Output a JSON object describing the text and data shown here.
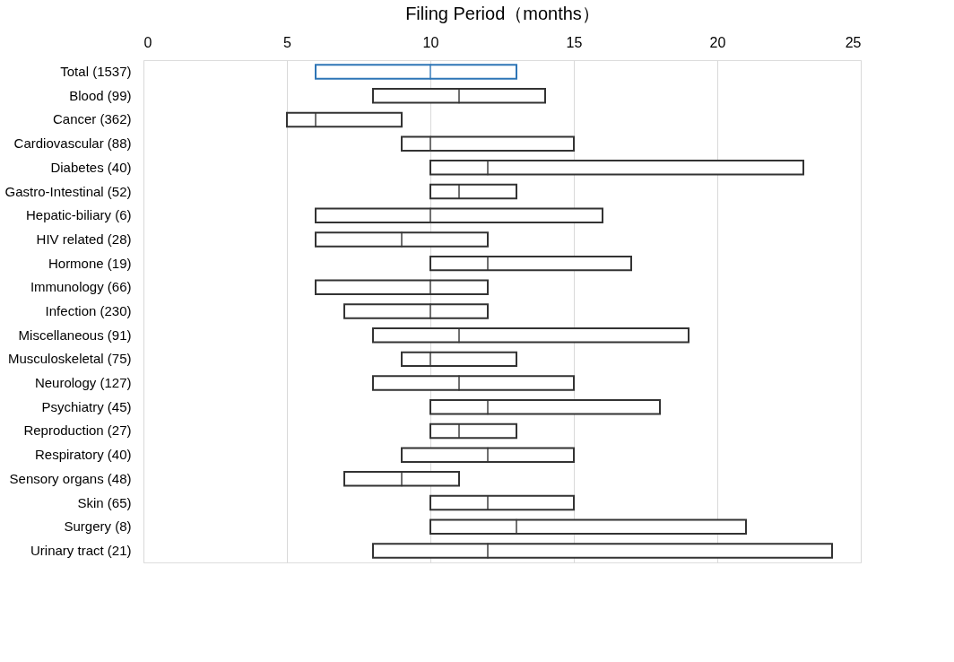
{
  "chart_data": {
    "type": "box",
    "orientation": "horizontal",
    "xlabel": "Filing Period（months）",
    "categories": [
      "Total (1537)",
      "Blood (99)",
      "Cancer (362)",
      "Cardiovascular (88)",
      "Diabetes (40)",
      "Gastro-Intestinal (52)",
      "Hepatic-biliary (6)",
      "HIV related (28)",
      "Hormone (19)",
      "Immunology (66)",
      "Infection (230)",
      "Miscellaneous (91)",
      "Musculoskeletal (75)",
      "Neurology (127)",
      "Psychiatry (45)",
      "Reproduction (27)",
      "Respiratory (40)",
      "Sensory organs (48)",
      "Skin (65)",
      "Surgery (8)",
      "Urinary tract (21)"
    ],
    "boxes": [
      {
        "low": 6,
        "q1": 6,
        "median": 10,
        "q3": 13,
        "high": 13
      },
      {
        "low": 8,
        "q1": 8,
        "median": 11,
        "q3": 14,
        "high": 14
      },
      {
        "low": 5,
        "q1": 5,
        "median": 6,
        "q3": 9,
        "high": 9
      },
      {
        "low": 9,
        "q1": 9,
        "median": 10,
        "q3": 15,
        "high": 15
      },
      {
        "low": 10,
        "q1": 10,
        "median": 12,
        "q3": 23,
        "high": 23
      },
      {
        "low": 10,
        "q1": 10,
        "median": 11,
        "q3": 13,
        "high": 13
      },
      {
        "low": 6,
        "q1": 6,
        "median": 10,
        "q3": 16,
        "high": 16
      },
      {
        "low": 6,
        "q1": 6,
        "median": 9,
        "q3": 12,
        "high": 12
      },
      {
        "low": 10,
        "q1": 10,
        "median": 12,
        "q3": 17,
        "high": 17
      },
      {
        "low": 6,
        "q1": 6,
        "median": 10,
        "q3": 12,
        "high": 12
      },
      {
        "low": 7,
        "q1": 7,
        "median": 10,
        "q3": 12,
        "high": 12
      },
      {
        "low": 8,
        "q1": 8,
        "median": 11,
        "q3": 19,
        "high": 19
      },
      {
        "low": 9,
        "q1": 9,
        "median": 10,
        "q3": 13,
        "high": 13
      },
      {
        "low": 8,
        "q1": 8,
        "median": 11,
        "q3": 15,
        "high": 15
      },
      {
        "low": 10,
        "q1": 10,
        "median": 12,
        "q3": 18,
        "high": 18
      },
      {
        "low": 10,
        "q1": 10,
        "median": 11,
        "q3": 13,
        "high": 13
      },
      {
        "low": 9,
        "q1": 9,
        "median": 12,
        "q3": 15,
        "high": 15
      },
      {
        "low": 7,
        "q1": 7,
        "median": 9,
        "q3": 11,
        "high": 11
      },
      {
        "low": 10,
        "q1": 10,
        "median": 12,
        "q3": 15,
        "high": 15
      },
      {
        "low": 10,
        "q1": 10,
        "median": 13,
        "q3": 21,
        "high": 21
      },
      {
        "low": 8,
        "q1": 8,
        "median": 12,
        "q3": 24,
        "high": 24
      }
    ],
    "colors": [
      "#2e75b6",
      "#333333",
      "#333333",
      "#333333",
      "#333333",
      "#333333",
      "#333333",
      "#333333",
      "#333333",
      "#333333",
      "#333333",
      "#333333",
      "#333333",
      "#333333",
      "#333333",
      "#333333",
      "#333333",
      "#333333",
      "#333333",
      "#333333",
      "#333333"
    ],
    "xlim": [
      0,
      25
    ],
    "xticks": [
      0,
      5,
      10,
      15,
      20,
      25
    ],
    "grid": "x"
  }
}
